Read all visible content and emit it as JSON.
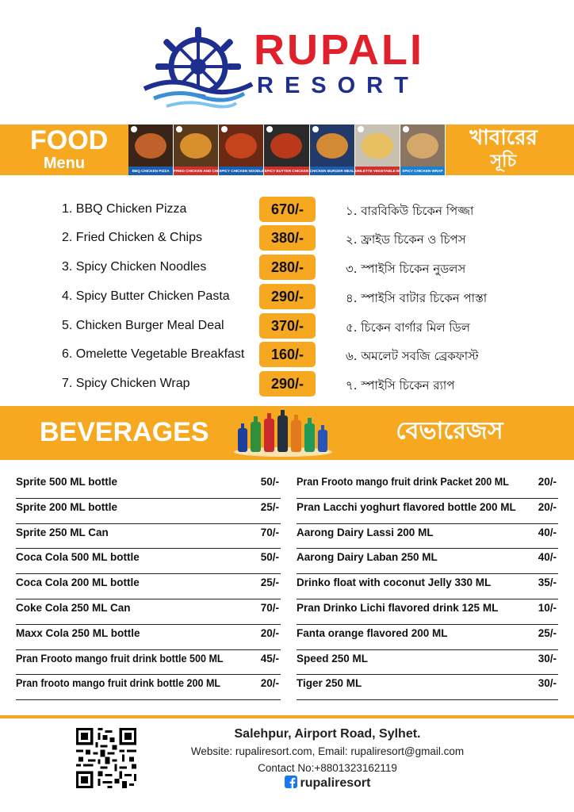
{
  "header": {
    "brand_name": "RUPALI",
    "brand_sub": "RESORT"
  },
  "food": {
    "title": "FOOD",
    "subtitle": "Menu",
    "title_bn": "খাবারের",
    "subtitle_bn": "সূচি",
    "strip_captions": [
      "BBQ CHICKEN PIZZA",
      "FRIED CHICKEN AND CHIPS",
      "SPICY CHICKEN NOODLES",
      "SPICY BUTTER CHICKEN PASTA",
      "CHICKEN BURGER MEAL DEAL",
      "OMLETTE VEGETABLE BREAKFAST",
      "SPICY CHICKEN WRAP"
    ],
    "items": [
      {
        "name": "1. BBQ Chicken Pizza",
        "price": "670/-",
        "name_bn": "১. বারবিকিউ চিকেন পিজ্জা"
      },
      {
        "name": "2. Fried Chicken & Chips",
        "price": "380/-",
        "name_bn": "২. ফ্রাইড চিকেন ও চিপস"
      },
      {
        "name": "3. Spicy Chicken Noodles",
        "price": "280/-",
        "name_bn": "৩. স্পাইসি চিকেন নুডলস"
      },
      {
        "name": "4. Spicy Butter Chicken Pasta",
        "price": "290/-",
        "name_bn": "৪. স্পাইসি বাটার চিকেন পাস্তা"
      },
      {
        "name": "5. Chicken Burger Meal Deal",
        "price": "370/-",
        "name_bn": "৫. চিকেন বার্গার মিল ডিল"
      },
      {
        "name": "6. Omelette Vegetable Breakfast",
        "price": "160/-",
        "name_bn": "৬. অমলেট সবজি ব্রেকফাস্ট"
      },
      {
        "name": "7. Spicy Chicken Wrap",
        "price": "290/-",
        "name_bn": "৭. স্পাইসি চিকেন র‍্যাপ"
      }
    ]
  },
  "beverages": {
    "title": "BEVERAGES",
    "title_bn": "বেভারেজস",
    "left": [
      {
        "name": "Sprite 500 ML bottle",
        "price": "50/-"
      },
      {
        "name": "Sprite 200 ML bottle",
        "price": "25/-"
      },
      {
        "name": "Sprite 250 ML Can",
        "price": "70/-"
      },
      {
        "name": "Coca Cola  500 ML bottle",
        "price": "50/-"
      },
      {
        "name": "Coca Cola  200 ML bottle",
        "price": "25/-"
      },
      {
        "name": "Coke Cola  250 ML  Can",
        "price": "70/-"
      },
      {
        "name": "Maxx  Cola  250  ML  bottle",
        "price": "20/-"
      },
      {
        "name": "Pran Frooto mango fruit drink bottle 500 ML",
        "price": "45/-"
      },
      {
        "name": "Pran frooto mango fruit drink bottle  200 ML",
        "price": "20/-"
      }
    ],
    "right": [
      {
        "name": "Pran Frooto  mango fruit drink Packet  200 ML",
        "price": "20/-"
      },
      {
        "name": "Pran Lacchi yoghurt flavored  bottle  200 ML",
        "price": "20/-"
      },
      {
        "name": "Aarong Dairy Lassi  200 ML",
        "price": "40/-"
      },
      {
        "name": "Aarong  Dairy Laban 250 ML",
        "price": "40/-"
      },
      {
        "name": "Drinko float with coconut Jelly 330 ML",
        "price": "35/-"
      },
      {
        "name": "Pran Drinko Lichi flavored drink  125 ML",
        "price": "10/-"
      },
      {
        "name": "Fanta orange flavored 200 ML",
        "price": "25/-"
      },
      {
        "name": "Speed  250 ML",
        "price": "30/-"
      },
      {
        "name": "Tiger  250  ML",
        "price": "30/-"
      }
    ]
  },
  "footer": {
    "address": "Salehpur, Airport Road, Sylhet.",
    "contact_line1": "Website: rupaliresort.com, Email: rupaliresort@gmail.com",
    "contact_line2": "Contact No:+8801323162119",
    "social_handle": "rupaliresort"
  },
  "colors": {
    "accent": "#f6a821",
    "brand_red": "#e0202a",
    "brand_blue": "#1f2f8f",
    "facebook_blue": "#1877f2"
  },
  "icons": [
    "ship-wheel-logo-icon",
    "qr-code-icon",
    "facebook-icon"
  ]
}
